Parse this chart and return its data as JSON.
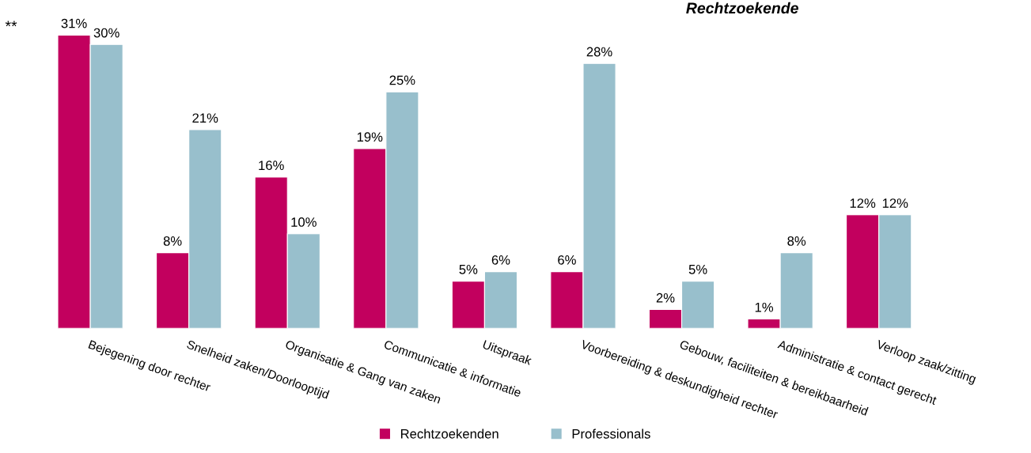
{
  "chart_data": {
    "type": "bar",
    "title": "Rechtzoekende",
    "categories": [
      "Bejegening door rechter",
      "Snelheid zaken/Doorlooptijd",
      "Organisatie & Gang van zaken",
      "Communicatie & informatie",
      "Uitspraak",
      "Voorbereiding & deskundigheid rechter",
      "Gebouw, faciliteiten & bereikbaarheid",
      "Administratie & contact gerecht",
      "Verloop zaak/zitting"
    ],
    "series": [
      {
        "name": "Rechtzoekenden",
        "color": "#c2005e",
        "values": [
          31,
          8,
          16,
          19,
          5,
          6,
          2,
          1,
          12
        ],
        "value_labels": [
          "31%",
          "8%",
          "16%",
          "19%",
          "5%",
          "6%",
          "2%",
          "1%",
          "12%"
        ]
      },
      {
        "name": "Professionals",
        "color": "#98bfcc",
        "values": [
          30,
          21,
          10,
          25,
          6,
          28,
          5,
          8,
          12
        ],
        "value_labels": [
          "30%",
          "21%",
          "10%",
          "25%",
          "6%",
          "28%",
          "5%",
          "8%",
          "12%"
        ]
      }
    ],
    "tick_labels": "x",
    "legend": "bottom",
    "grid": false,
    "annotations": [
      "**"
    ]
  }
}
